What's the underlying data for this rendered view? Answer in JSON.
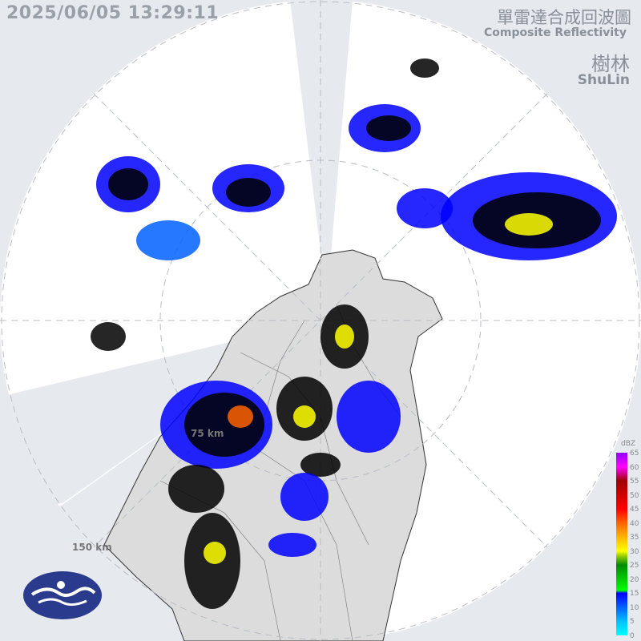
{
  "header": {
    "timestamp": "2025/06/05 13:29:11",
    "product_title_zh": "單雷達合成回波圖",
    "product_title_en": "Composite Reflectivity",
    "site_name_zh": "樹林",
    "site_name_en": "ShuLin"
  },
  "range_rings": [
    {
      "label": "75 km"
    },
    {
      "label": "150 km"
    }
  ],
  "legend": {
    "unit": "dBZ",
    "ticks": [
      "65",
      "60",
      "55",
      "50",
      "45",
      "40",
      "35",
      "30",
      "25",
      "20",
      "15",
      "10",
      "5",
      "0"
    ],
    "colors": {
      "0": "#00ffff",
      "5": "#00c0ff",
      "10": "#0060ff",
      "15": "#0000ff",
      "16": "#00ff00",
      "25": "#008c00",
      "28": "#8cc800",
      "30": "#ffff00",
      "35": "#ffb400",
      "40": "#ff6400",
      "45": "#ff0000",
      "50": "#d00000",
      "55": "#a00000",
      "60": "#ff00ff",
      "65": "#9000ff"
    }
  },
  "logo": {
    "name": "cwa-logo"
  }
}
